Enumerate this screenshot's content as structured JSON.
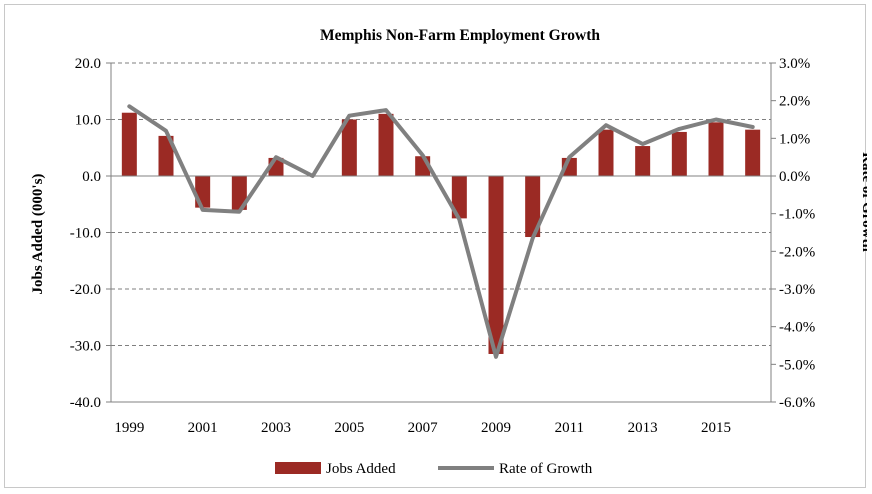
{
  "chart_data": {
    "type": "bar+line",
    "title": "Memphis Non-Farm Employment Growth",
    "ylabel_left": "Jobs Added (000's)",
    "ylabel_right": "Rate of Growth",
    "xlabel": "",
    "years": [
      1999,
      2000,
      2001,
      2002,
      2003,
      2004,
      2005,
      2006,
      2007,
      2008,
      2009,
      2010,
      2011,
      2012,
      2013,
      2014,
      2015,
      2016
    ],
    "x_tick_labels": [
      "1999",
      "2001",
      "2003",
      "2005",
      "2007",
      "2009",
      "2011",
      "2013",
      "2015"
    ],
    "y_left_ticks": [
      "20.0",
      "10.0",
      "0.0",
      "-10.0",
      "-20.0",
      "-30.0",
      "-40.0"
    ],
    "y_right_ticks": [
      "3.0%",
      "2.0%",
      "1.0%",
      "0.0%",
      "-1.0%",
      "-2.0%",
      "-3.0%",
      "-4.0%",
      "-5.0%",
      "-6.0%"
    ],
    "ylim_left": [
      -40,
      20
    ],
    "ylim_right": [
      -6,
      3
    ],
    "series": [
      {
        "name": "Jobs Added",
        "type": "bar",
        "axis": "left",
        "color": "#9b2a24",
        "values": [
          11.2,
          7.1,
          -5.6,
          -6.0,
          3.2,
          null,
          10.0,
          11.0,
          3.5,
          -7.5,
          -31.5,
          -10.8,
          3.2,
          8.2,
          5.3,
          7.8,
          9.5,
          8.2
        ]
      },
      {
        "name": "Rate of Growth",
        "type": "line",
        "axis": "right",
        "color": "#808080",
        "values": [
          1.85,
          1.2,
          -0.9,
          -0.95,
          0.5,
          0.0,
          1.6,
          1.75,
          0.55,
          -1.15,
          -4.8,
          -1.65,
          0.5,
          1.35,
          0.85,
          1.25,
          1.5,
          1.3
        ]
      }
    ],
    "grid": "horizontal dashed",
    "legend_position": "bottom"
  }
}
